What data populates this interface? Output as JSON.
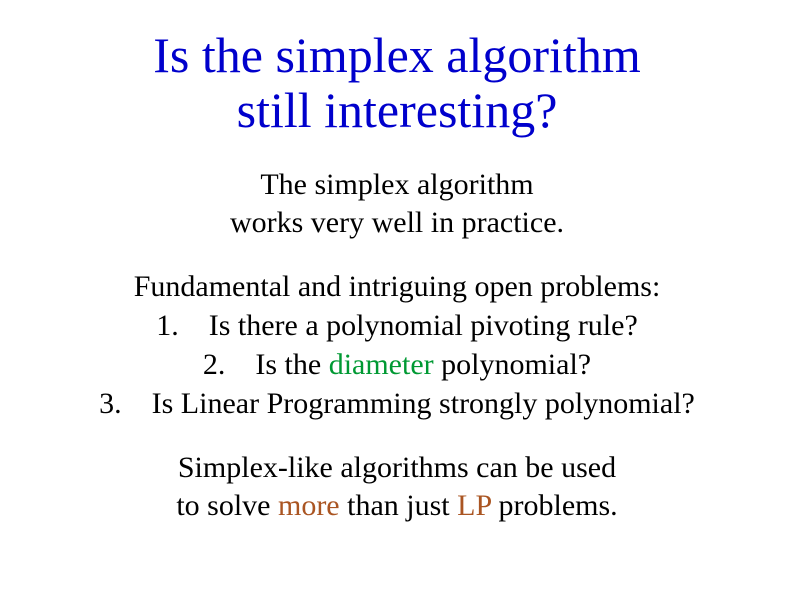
{
  "colors": {
    "title": "#0000cc",
    "body": "#000000",
    "highlight_green": "#009933",
    "highlight_brown": "#aa5522",
    "background": "#ffffff"
  },
  "typography": {
    "family": "Times New Roman",
    "title_fontsize_pt": 38,
    "body_fontsize_pt": 22
  },
  "title": {
    "line1": "Is the simplex algorithm",
    "line2": "still interesting?"
  },
  "intro": {
    "line1": "The simplex algorithm",
    "line2": "works very well in practice."
  },
  "problems": {
    "heading": "Fundamental and intriguing open problems:",
    "item1_num": "1.",
    "item1_text": "Is there a polynomial pivoting rule?",
    "item2_num": "2.",
    "item2_pre": "Is the ",
    "item2_hl": "diameter",
    "item2_post": " polynomial?",
    "item3_num": "3.",
    "item3_text": "Is Linear Programming strongly polynomial?"
  },
  "closing": {
    "line1_pre": "Simplex-like algorithms can be used",
    "line2_pre": "to solve ",
    "line2_hl": "more",
    "line2_mid": " than just ",
    "line2_hl2": "LP",
    "line2_post": " problems."
  }
}
